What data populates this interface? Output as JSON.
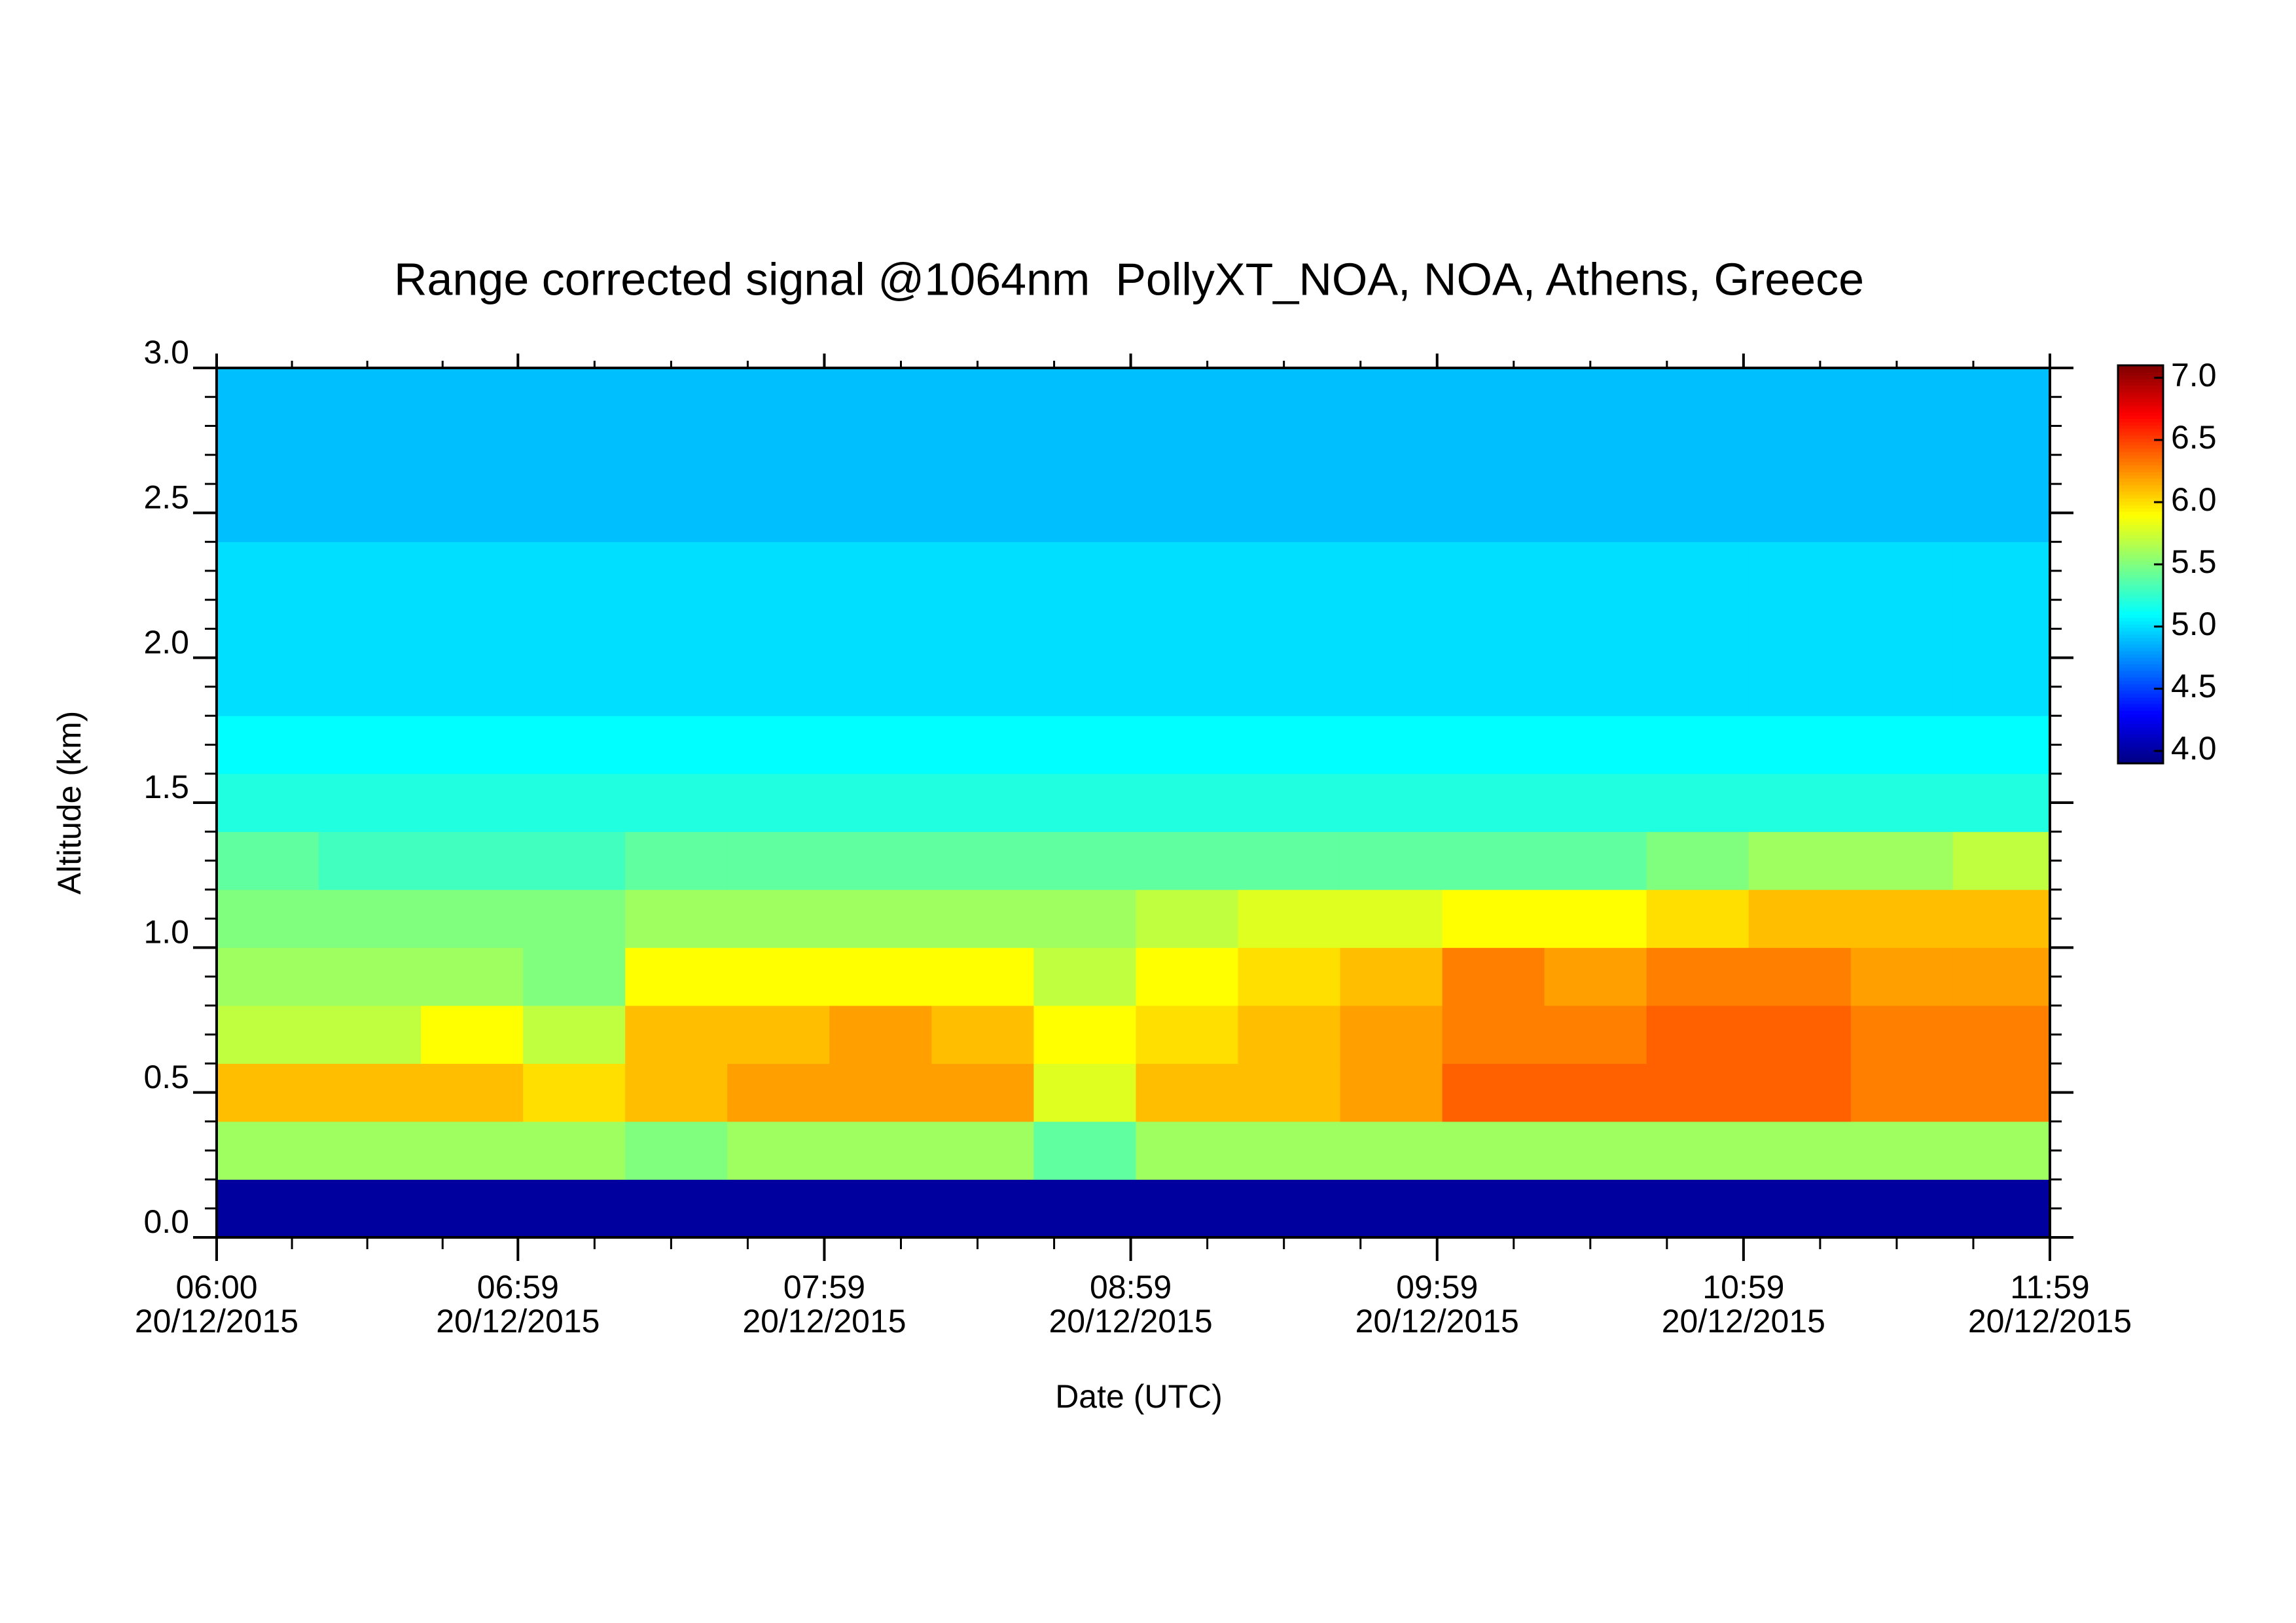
{
  "chart_data": {
    "type": "heatmap",
    "title": "Range corrected signal @1064nm  PollyXT_NOA, NOA, Athens, Greece",
    "x_label": "Date (UTC)",
    "y_label": "Altitude (km)",
    "colormap": "jet",
    "x": [
      "2015-12-20T06:10",
      "2015-12-20T06:30",
      "2015-12-20T06:50",
      "2015-12-20T07:10",
      "2015-12-20T07:30",
      "2015-12-20T07:50",
      "2015-12-20T08:10",
      "2015-12-20T08:30",
      "2015-12-20T08:50",
      "2015-12-20T09:10",
      "2015-12-20T09:30",
      "2015-12-20T09:50",
      "2015-12-20T10:10",
      "2015-12-20T10:30",
      "2015-12-20T10:50",
      "2015-12-20T11:10",
      "2015-12-20T11:30",
      "2015-12-20T11:50"
    ],
    "y": [
      0.1,
      0.3,
      0.5,
      0.7,
      0.9,
      1.1,
      1.3,
      1.5,
      1.7,
      1.9,
      2.1,
      2.3,
      2.5,
      2.7,
      2.9
    ],
    "z": [
      [
        4.0,
        4.0,
        4.0,
        4.0,
        4.0,
        4.0,
        4.0,
        4.0,
        4.0,
        4.0,
        4.0,
        4.0,
        4.0,
        4.0,
        4.0,
        4.0,
        4.0,
        4.0
      ],
      [
        5.6,
        5.6,
        5.6,
        5.6,
        5.5,
        5.6,
        5.6,
        5.6,
        5.4,
        5.6,
        5.6,
        5.6,
        5.6,
        5.6,
        5.6,
        5.6,
        5.6,
        5.6
      ],
      [
        6.1,
        6.1,
        6.1,
        6.0,
        6.1,
        6.2,
        6.2,
        6.2,
        5.8,
        6.1,
        6.1,
        6.2,
        6.4,
        6.4,
        6.4,
        6.4,
        6.3,
        6.3
      ],
      [
        5.7,
        5.7,
        5.9,
        5.7,
        6.1,
        6.1,
        6.2,
        6.1,
        5.9,
        6.0,
        6.1,
        6.2,
        6.3,
        6.3,
        6.4,
        6.4,
        6.3,
        6.3
      ],
      [
        5.6,
        5.6,
        5.6,
        5.5,
        5.9,
        5.9,
        5.9,
        5.9,
        5.7,
        5.9,
        6.0,
        6.1,
        6.3,
        6.2,
        6.3,
        6.3,
        6.2,
        6.2
      ],
      [
        5.5,
        5.5,
        5.5,
        5.5,
        5.6,
        5.6,
        5.6,
        5.6,
        5.6,
        5.7,
        5.8,
        5.8,
        5.9,
        5.9,
        6.0,
        6.1,
        6.1,
        6.1
      ],
      [
        5.4,
        5.3,
        5.3,
        5.3,
        5.4,
        5.4,
        5.4,
        5.4,
        5.4,
        5.4,
        5.4,
        5.4,
        5.4,
        5.4,
        5.5,
        5.6,
        5.6,
        5.7
      ],
      [
        5.2,
        5.2,
        5.2,
        5.2,
        5.2,
        5.2,
        5.2,
        5.2,
        5.2,
        5.2,
        5.2,
        5.2,
        5.2,
        5.2,
        5.2,
        5.2,
        5.2,
        5.2
      ],
      [
        5.1,
        5.1,
        5.1,
        5.1,
        5.1,
        5.1,
        5.1,
        5.1,
        5.1,
        5.1,
        5.1,
        5.1,
        5.1,
        5.1,
        5.1,
        5.1,
        5.1,
        5.1
      ],
      [
        5.0,
        5.0,
        5.0,
        5.0,
        5.0,
        5.0,
        5.0,
        5.0,
        5.0,
        5.0,
        5.0,
        5.0,
        5.0,
        5.0,
        5.0,
        5.0,
        5.0,
        5.0
      ],
      [
        5.0,
        5.0,
        5.0,
        5.0,
        5.0,
        5.0,
        5.0,
        5.0,
        5.0,
        5.0,
        5.0,
        5.0,
        5.0,
        5.0,
        5.0,
        5.0,
        5.0,
        5.0
      ],
      [
        5.0,
        5.0,
        5.0,
        5.0,
        5.0,
        5.0,
        5.0,
        5.0,
        5.0,
        5.0,
        5.0,
        5.0,
        5.0,
        5.0,
        5.0,
        5.0,
        5.0,
        5.0
      ],
      [
        4.9,
        4.9,
        4.9,
        4.9,
        4.9,
        4.9,
        4.9,
        4.9,
        4.9,
        4.9,
        4.9,
        4.9,
        4.9,
        4.9,
        4.9,
        4.9,
        4.9,
        4.9
      ],
      [
        4.9,
        4.9,
        4.9,
        4.9,
        4.9,
        4.9,
        4.9,
        4.9,
        4.9,
        4.9,
        4.9,
        4.9,
        4.9,
        4.9,
        4.9,
        4.9,
        4.9,
        4.9
      ],
      [
        4.9,
        4.9,
        4.9,
        4.9,
        4.9,
        4.9,
        4.9,
        4.9,
        4.9,
        4.9,
        4.9,
        4.9,
        4.9,
        4.9,
        4.9,
        4.9,
        4.9,
        4.9
      ]
    ],
    "xlim": [
      "2015-12-20T06:00",
      "2015-12-20T11:59"
    ],
    "xticks": [
      {
        "value": "2015-12-20T06:00",
        "label": [
          "06:00",
          "20/12/2015"
        ]
      },
      {
        "value": "2015-12-20T06:59",
        "label": [
          "06:59",
          "20/12/2015"
        ]
      },
      {
        "value": "2015-12-20T07:59",
        "label": [
          "07:59",
          "20/12/2015"
        ]
      },
      {
        "value": "2015-12-20T08:59",
        "label": [
          "08:59",
          "20/12/2015"
        ]
      },
      {
        "value": "2015-12-20T09:59",
        "label": [
          "09:59",
          "20/12/2015"
        ]
      },
      {
        "value": "2015-12-20T10:59",
        "label": [
          "10:59",
          "20/12/2015"
        ]
      },
      {
        "value": "2015-12-20T11:59",
        "label": [
          "11:59",
          "20/12/2015"
        ]
      }
    ],
    "ylim": [
      0,
      3.0
    ],
    "yticks": [
      {
        "value": 0,
        "label": "0.0"
      },
      0.5,
      {
        "value": 1,
        "label": "1.0"
      },
      1.5,
      {
        "value": 2,
        "label": "2.0"
      },
      2.5,
      {
        "value": 3,
        "label": "3.0"
      }
    ],
    "clim": [
      3.9,
      7.1
    ],
    "cticks": [
      {
        "value": 4,
        "label": "4.0"
      },
      4.5,
      {
        "value": 5,
        "label": "5.0"
      },
      5.5,
      {
        "value": 6,
        "label": "6.0"
      },
      6.5,
      {
        "value": 7,
        "label": "7.0"
      }
    ]
  }
}
